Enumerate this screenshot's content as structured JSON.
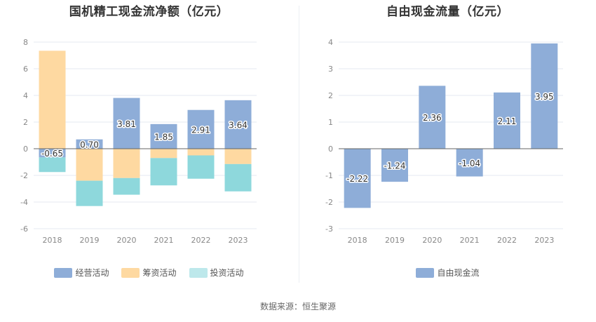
{
  "source_text": "数据来源：恒生聚源",
  "colors": {
    "operating": "#8eadd8",
    "financing": "#fed9a1",
    "investing": "#8ed8dc",
    "investing_legend": "#bde8eb",
    "free_cash_flow": "#8eadd8",
    "grid": "#e6e9f0",
    "zero_axis": "#666666",
    "tick_text": "#888888"
  },
  "chart_data": [
    {
      "type": "bar",
      "stacked": true,
      "title": "国机精工现金流净额（亿元）",
      "categories": [
        "2018",
        "2019",
        "2020",
        "2021",
        "2022",
        "2023"
      ],
      "ylim": [
        -6,
        8
      ],
      "yticks": [
        -6,
        -4,
        -2,
        0,
        2,
        4,
        6,
        8
      ],
      "grid": true,
      "legend_position": "bottom",
      "series": [
        {
          "name": "经营活动",
          "key": "operating",
          "values": [
            -0.65,
            0.7,
            3.81,
            1.85,
            2.91,
            3.64
          ],
          "show_labels": true
        },
        {
          "name": "筹资活动",
          "key": "financing",
          "values": [
            7.35,
            -2.4,
            -2.2,
            -0.7,
            -0.5,
            -1.15
          ]
        },
        {
          "name": "投资活动",
          "key": "investing",
          "values": [
            -1.1,
            -1.9,
            -1.25,
            -2.05,
            -1.75,
            -2.05
          ]
        }
      ],
      "value_labels": [
        "-0.65",
        "0.70",
        "3.81",
        "1.85",
        "2.91",
        "3.64"
      ]
    },
    {
      "type": "bar",
      "title": "自由现金流量（亿元）",
      "categories": [
        "2018",
        "2019",
        "2020",
        "2021",
        "2022",
        "2023"
      ],
      "ylim": [
        -3,
        4
      ],
      "yticks": [
        -3,
        -2,
        -1,
        0,
        1,
        2,
        3,
        4
      ],
      "grid": true,
      "legend_position": "bottom",
      "series": [
        {
          "name": "自由现金流",
          "key": "free_cash_flow",
          "values": [
            -2.22,
            -1.24,
            2.36,
            -1.04,
            2.11,
            3.95
          ],
          "show_labels": true
        }
      ],
      "value_labels": [
        "-2.22",
        "-1.24",
        "2.36",
        "-1.04",
        "2.11",
        "3.95"
      ]
    }
  ]
}
